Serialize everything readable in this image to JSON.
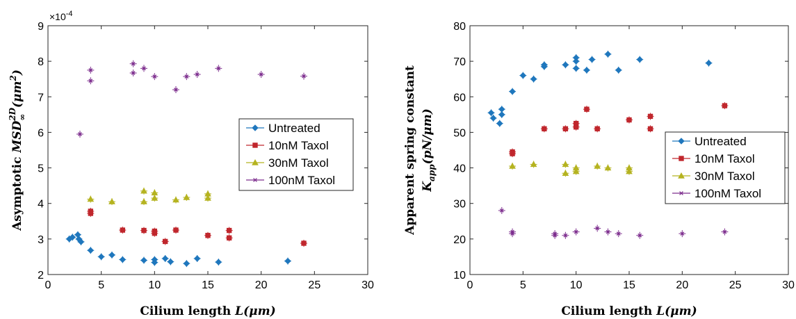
{
  "chart_data": [
    {
      "type": "scatter",
      "title": "",
      "xlabel": "Cilium length L(μm)",
      "xlabel_parts": {
        "text": "Cilium length ",
        "var": "L",
        "unit": "(μm)"
      },
      "ylabel": "Asymptotic MSD∞2D(μm2)",
      "ylabel_parts": {
        "text": "Asymptotic ",
        "var": "MSD",
        "sub": "∞",
        "sup": "2D",
        "unit_open": "(μm",
        "unit_sup": "2",
        "unit_close": ")"
      },
      "xlim": [
        0,
        30
      ],
      "ylim": [
        2,
        9
      ],
      "x_ticks": [
        0,
        5,
        10,
        15,
        20,
        25,
        30
      ],
      "y_ticks": [
        2,
        3,
        4,
        5,
        6,
        7,
        8,
        9
      ],
      "y_exponent_label": "×10-4",
      "y_exponent_parts": {
        "base": "×10",
        "exp": "-4"
      },
      "grid": false,
      "legend_position": "right",
      "series": [
        {
          "name": "Untreated",
          "color": "#1f77bd",
          "marker": "diamond",
          "x": [
            2,
            2.3,
            2.8,
            2.9,
            3.1,
            4,
            5,
            6,
            7,
            9,
            10,
            10,
            11,
            11.5,
            13,
            14,
            16,
            22.5
          ],
          "y": [
            3.0,
            3.05,
            3.12,
            3.0,
            2.92,
            2.68,
            2.5,
            2.55,
            2.42,
            2.4,
            2.42,
            2.34,
            2.45,
            2.36,
            2.31,
            2.45,
            2.35,
            2.38
          ]
        },
        {
          "name": "10nM Taxol",
          "color": "#c0272d",
          "marker": "square",
          "x": [
            4,
            4,
            7,
            9,
            10,
            10,
            11,
            12,
            15,
            17,
            17,
            24
          ],
          "y": [
            3.78,
            3.72,
            3.25,
            3.24,
            3.22,
            3.16,
            2.93,
            3.25,
            3.1,
            3.24,
            3.03,
            2.88
          ]
        },
        {
          "name": "30nM Taxol",
          "color": "#b5b320",
          "marker": "triangle",
          "x": [
            4,
            6,
            9,
            9,
            10,
            10,
            12,
            13,
            15,
            15
          ],
          "y": [
            4.12,
            4.05,
            4.35,
            4.05,
            4.3,
            4.15,
            4.1,
            4.17,
            4.27,
            4.15
          ]
        },
        {
          "name": "100nM Taxol",
          "color": "#7d2e8e",
          "marker": "x",
          "x": [
            3,
            4,
            4,
            8,
            8,
            9,
            10,
            12,
            13,
            14,
            16,
            20,
            24
          ],
          "y": [
            5.95,
            7.75,
            7.45,
            7.93,
            7.67,
            7.8,
            7.57,
            7.2,
            7.57,
            7.63,
            7.8,
            7.63,
            7.58
          ]
        }
      ]
    },
    {
      "type": "scatter",
      "title": "",
      "xlabel": "Cilium length L(μm)",
      "xlabel_parts": {
        "text": "Cilium length ",
        "var": "L",
        "unit": "(μm)"
      },
      "ylabel": "Apparent spring constant Kapp(pN/μm)",
      "ylabel_parts": {
        "line1": "Apparent spring constant",
        "var": "K",
        "sub": "app",
        "unit": "(pN/μm)"
      },
      "xlim": [
        0,
        30
      ],
      "ylim": [
        10,
        80
      ],
      "x_ticks": [
        0,
        5,
        10,
        15,
        20,
        25,
        30
      ],
      "y_ticks": [
        10,
        20,
        30,
        40,
        50,
        60,
        70,
        80
      ],
      "grid": false,
      "legend_position": "right",
      "series": [
        {
          "name": "Untreated",
          "color": "#1f77bd",
          "marker": "diamond",
          "x": [
            2,
            2.2,
            2.8,
            3,
            3,
            4,
            5,
            6,
            7,
            7,
            9,
            10,
            10,
            10,
            11,
            11.5,
            13,
            14,
            16,
            22.5
          ],
          "y": [
            55.5,
            54,
            52.5,
            55,
            56.5,
            61.5,
            66,
            65,
            68.5,
            69,
            69,
            71,
            70,
            68,
            67.5,
            70.5,
            72,
            67.5,
            70.5,
            69.5
          ]
        },
        {
          "name": "10nM Taxol",
          "color": "#c0272d",
          "marker": "square",
          "x": [
            4,
            4,
            7,
            9,
            10,
            10,
            11,
            12,
            15,
            17,
            17,
            24
          ],
          "y": [
            44.5,
            44,
            51,
            51,
            52.5,
            51.5,
            56.5,
            51,
            53.5,
            54.5,
            51,
            57.5
          ]
        },
        {
          "name": "30nM Taxol",
          "color": "#b5b320",
          "marker": "triangle",
          "x": [
            4,
            6,
            9,
            9,
            10,
            10,
            12,
            13,
            15,
            15
          ],
          "y": [
            40.5,
            41,
            41,
            38.5,
            40,
            39,
            40.5,
            40,
            40,
            39
          ]
        },
        {
          "name": "100nM Taxol",
          "color": "#7d2e8e",
          "marker": "x",
          "x": [
            3,
            4,
            4,
            8,
            8,
            9,
            10,
            12,
            13,
            14,
            16,
            20,
            24
          ],
          "y": [
            28,
            22,
            21.5,
            21.5,
            21,
            21,
            22,
            23,
            22,
            21.5,
            21,
            21.5,
            22
          ]
        }
      ]
    }
  ]
}
